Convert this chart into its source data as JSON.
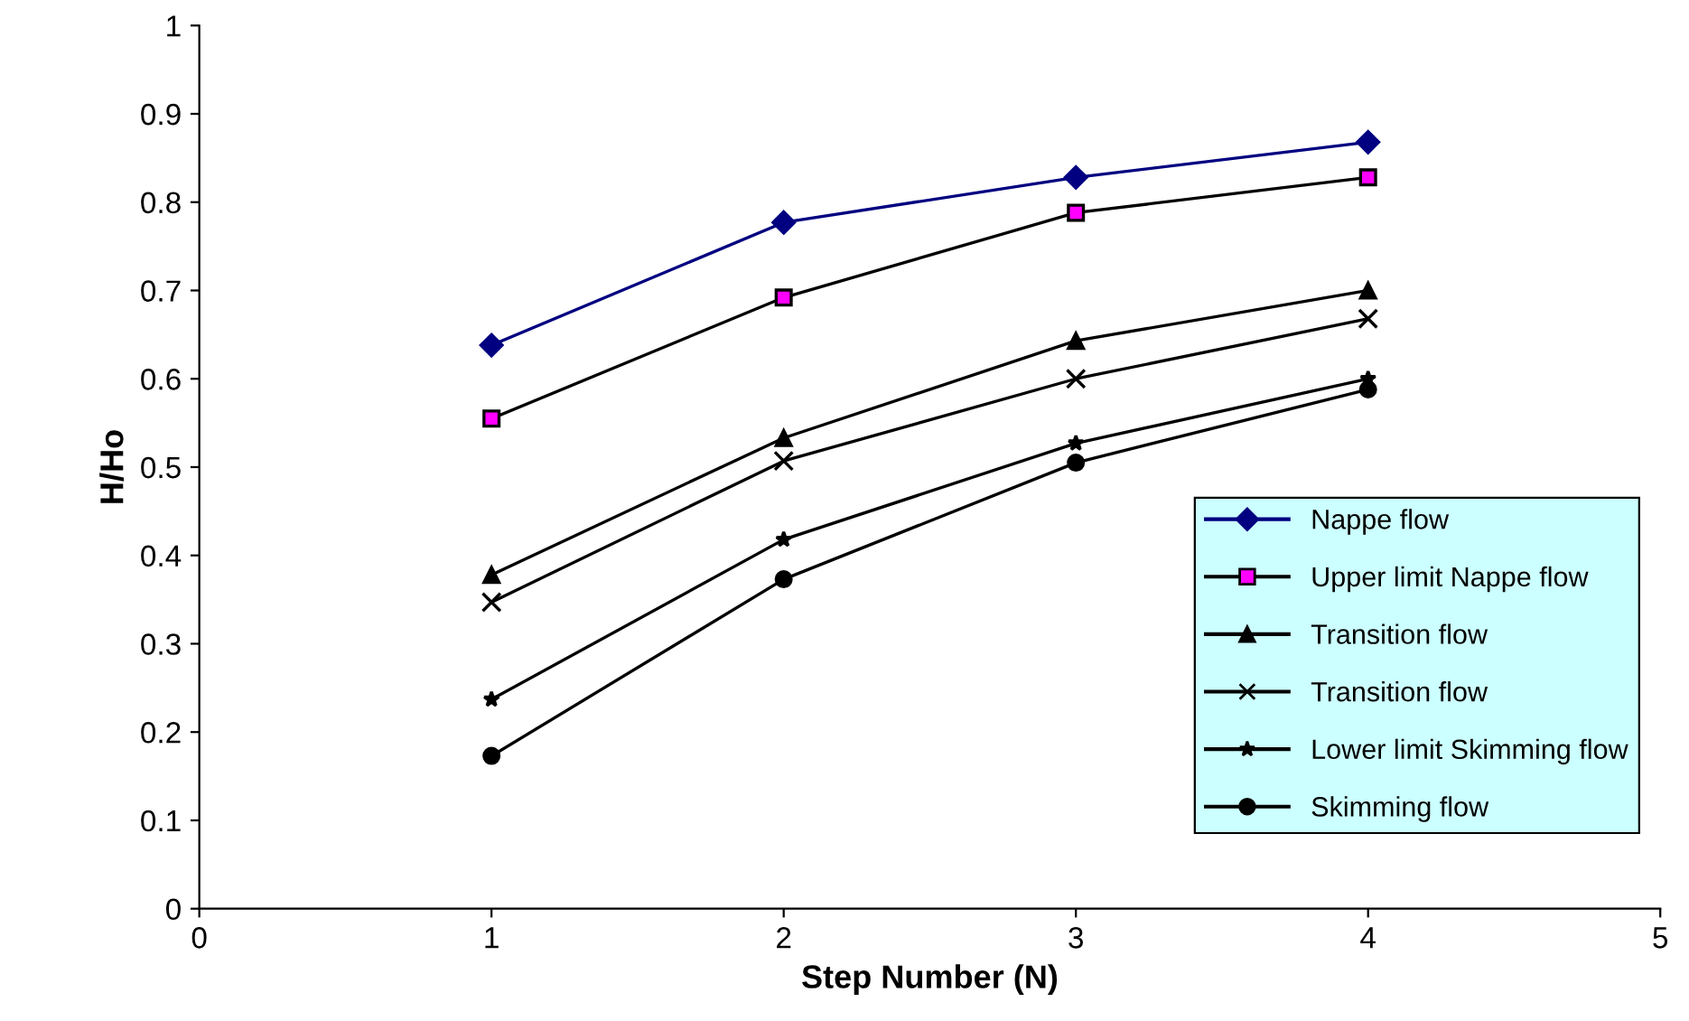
{
  "chart_data": {
    "type": "line",
    "xlabel": "Step Number (N)",
    "ylabel": "H/Ho",
    "x": [
      1,
      2,
      3,
      4
    ],
    "series": [
      {
        "name": "Nappe flow",
        "color": "#000080",
        "marker": "diamond",
        "values": [
          0.638,
          0.777,
          0.828,
          0.868
        ]
      },
      {
        "name": "Upper limit Nappe flow",
        "color": "#ff00ff",
        "marker": "square",
        "values": [
          0.555,
          0.692,
          0.788,
          0.828
        ]
      },
      {
        "name": "Transition flow",
        "color": "#000000",
        "marker": "triangle",
        "values": [
          0.378,
          0.533,
          0.643,
          0.7
        ]
      },
      {
        "name": "Transition flow",
        "color": "#000000",
        "marker": "cross",
        "values": [
          0.347,
          0.507,
          0.6,
          0.668
        ]
      },
      {
        "name": "Lower limit Skimming flow",
        "color": "#000000",
        "marker": "star",
        "values": [
          0.237,
          0.418,
          0.527,
          0.6
        ]
      },
      {
        "name": "Skimming flow",
        "color": "#000000",
        "marker": "circle",
        "values": [
          0.173,
          0.373,
          0.505,
          0.588
        ]
      }
    ],
    "xlim": [
      0,
      5
    ],
    "xticks": [
      0,
      1,
      2,
      3,
      4,
      5
    ],
    "ylim": [
      0,
      1
    ],
    "yticks": [
      0,
      0.1,
      0.2,
      0.3,
      0.4,
      0.5,
      0.6,
      0.7,
      0.8,
      0.9,
      1
    ],
    "grid": false,
    "legend": "bottom right",
    "line_style": "solid"
  }
}
